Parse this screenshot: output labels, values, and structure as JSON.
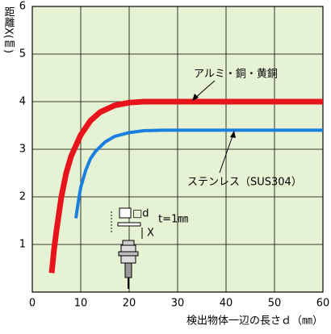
{
  "chart_data": {
    "type": "line",
    "y_label": "距離X(㎜)",
    "x_label": "検出物体一辺の長さｄ（㎜）",
    "xlim": [
      0,
      60
    ],
    "ylim": [
      0,
      6
    ],
    "xticks": [
      0,
      10,
      20,
      30,
      40,
      50,
      60
    ],
    "yticks": [
      1,
      2,
      3,
      4,
      5,
      6
    ],
    "grid": true,
    "background": "#e6f2d4",
    "series": [
      {
        "name": "アルミ・銅・黄銅",
        "color": "#e8141c",
        "width": 7,
        "x": [
          4,
          4.5,
          5,
          6,
          7,
          8,
          10,
          12,
          14,
          17,
          20,
          23,
          30,
          40,
          50,
          60
        ],
        "values": [
          0.4,
          0.9,
          1.3,
          2.0,
          2.5,
          2.85,
          3.3,
          3.6,
          3.78,
          3.92,
          3.98,
          4.0,
          4.0,
          4.0,
          4.0,
          4.0
        ]
      },
      {
        "name": "ステンレス（SUS304）",
        "color": "#1a7fe0",
        "width": 4,
        "x": [
          9,
          9.5,
          10,
          11,
          12,
          13,
          15,
          17,
          20,
          23,
          27,
          30,
          40,
          50,
          60
        ],
        "values": [
          1.55,
          1.9,
          2.2,
          2.55,
          2.8,
          2.95,
          3.15,
          3.27,
          3.35,
          3.39,
          3.4,
          3.4,
          3.4,
          3.4,
          3.4
        ]
      }
    ],
    "annotations": [
      "□d",
      "t=1㎜",
      "X"
    ]
  }
}
